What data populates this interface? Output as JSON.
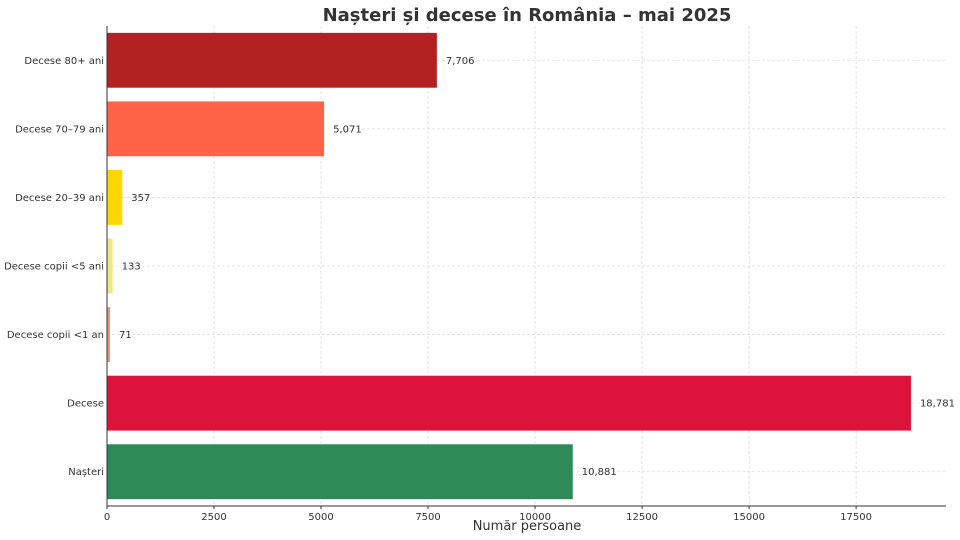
{
  "chart_data": {
    "type": "bar",
    "orientation": "horizontal",
    "title": "Nașteri și decese în România – mai 2025",
    "xlabel": "Număr persoane",
    "ylabel": "",
    "xlim": [
      0,
      19600
    ],
    "xticks": [
      0,
      2500,
      5000,
      7500,
      10000,
      12500,
      15000,
      17500
    ],
    "grid": true,
    "categories": [
      "Decese 80+ ani",
      "Decese 70–79 ani",
      "Decese 20–39 ani",
      "Decese copii <5 ani",
      "Decese copii <1 an",
      "Decese",
      "Nașteri"
    ],
    "values": [
      7706,
      5071,
      357,
      133,
      71,
      18781,
      10881
    ],
    "value_labels": [
      "7,706",
      "5,071",
      "357",
      "133",
      "71",
      "18,781",
      "10,881"
    ],
    "colors": [
      "#b22222",
      "#ff6347",
      "#ffd700",
      "#f0e68c",
      "#e9967a",
      "#dc143c",
      "#2e8b57"
    ]
  }
}
